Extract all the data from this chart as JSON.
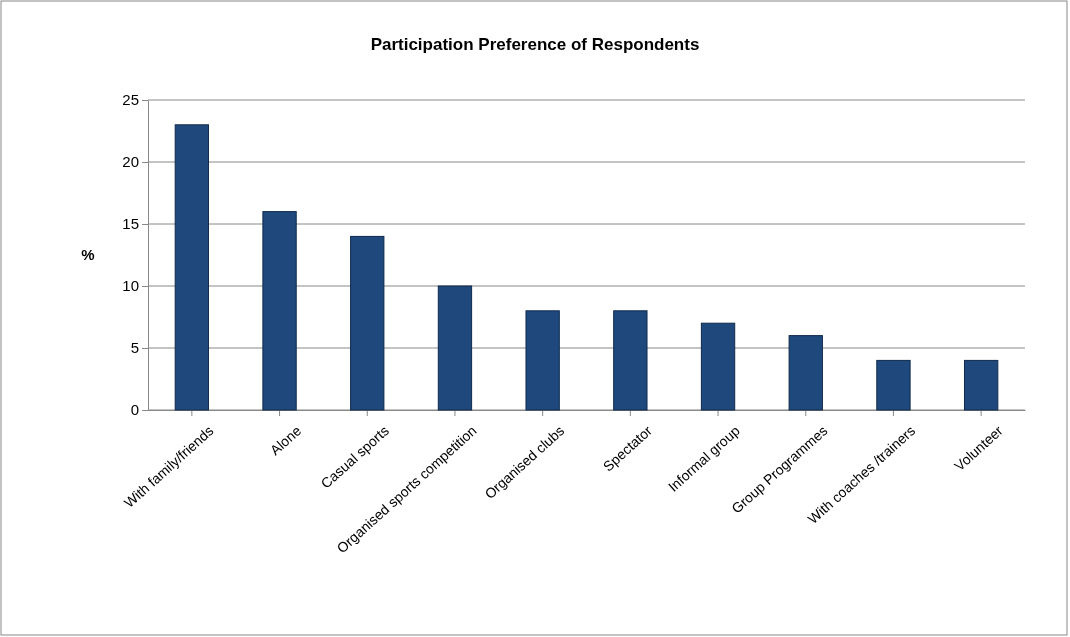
{
  "chart_data": {
    "type": "bar",
    "title": "Participation Preference of Respondents",
    "ylabel": "%",
    "categories": [
      "With family/friends",
      "Alone",
      "Casual sports",
      "Organised sports competition",
      "Organised clubs",
      "Spectator",
      "Informal group",
      "Group Programmes",
      "With coaches /trainers",
      "Volunteer"
    ],
    "values": [
      23,
      16,
      14,
      10,
      8,
      8,
      7,
      6,
      4,
      4
    ],
    "color": "#1f497d",
    "ylim": [
      0,
      25
    ],
    "yticks": [
      0,
      5,
      10,
      15,
      20,
      25
    ],
    "grid": "y"
  }
}
